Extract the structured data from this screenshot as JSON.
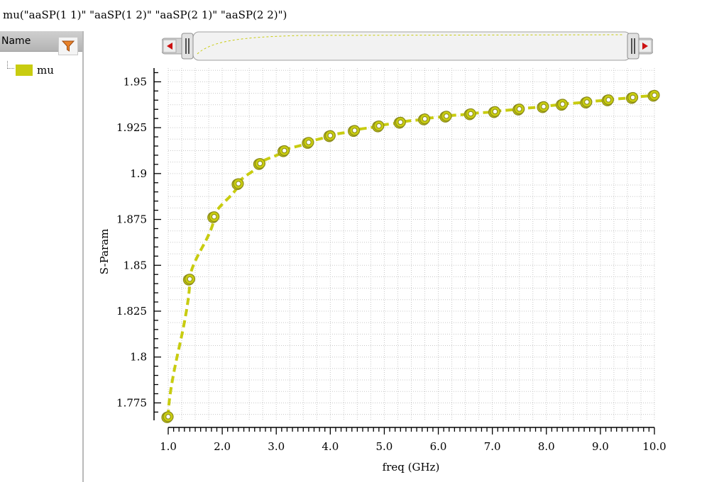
{
  "title": "mu(\"aaSP(1 1)\" \"aaSP(1 2)\" \"aaSP(2 1)\" \"aaSP(2 2)\")",
  "sidebar": {
    "header": "Name",
    "legend_items": [
      {
        "label": "mu",
        "color": "#c8cc10"
      }
    ]
  },
  "icons": {
    "filter": "filter-funnel-icon",
    "scroll_left": "arrow-left-icon",
    "scroll_right": "arrow-right-icon"
  },
  "colors": {
    "series": "#c8cc10",
    "marker_outline": "#8a8a1a",
    "grid": "#c8c8c8"
  },
  "chart_data": {
    "type": "line",
    "xlabel": "freq (GHz)",
    "ylabel": "S-Param",
    "xlim": [
      1.0,
      10.0
    ],
    "ylim": [
      1.7655,
      1.9575
    ],
    "x_ticks": [
      1.0,
      2.0,
      3.0,
      4.0,
      5.0,
      6.0,
      7.0,
      8.0,
      9.0,
      10.0
    ],
    "x_tick_labels": [
      "1.0",
      "2.0",
      "3.0",
      "4.0",
      "5.0",
      "6.0",
      "7.0",
      "8.0",
      "9.0",
      "10.0"
    ],
    "y_ticks": [
      1.775,
      1.8,
      1.825,
      1.85,
      1.875,
      1.9,
      1.925,
      1.95
    ],
    "y_tick_labels": [
      "1.775",
      "1.8",
      "1.825",
      "1.85",
      "1.875",
      "1.9",
      "1.925",
      "1.95"
    ],
    "grid": true,
    "series": [
      {
        "name": "mu",
        "line_style": "dashed",
        "markers": true,
        "x": [
          1.0,
          1.4,
          1.85,
          2.3,
          2.7,
          3.15,
          3.6,
          4.0,
          4.45,
          4.9,
          5.3,
          5.75,
          6.15,
          6.6,
          7.05,
          7.5,
          7.95,
          8.3,
          8.75,
          9.15,
          9.6,
          10.0
        ],
        "y": [
          1.7675,
          1.8425,
          1.8765,
          1.8945,
          1.9055,
          1.9125,
          1.917,
          1.9207,
          1.9235,
          1.926,
          1.928,
          1.9298,
          1.9313,
          1.9326,
          1.9338,
          1.9352,
          1.9365,
          1.9378,
          1.939,
          1.9402,
          1.9415,
          1.9427
        ]
      }
    ]
  }
}
